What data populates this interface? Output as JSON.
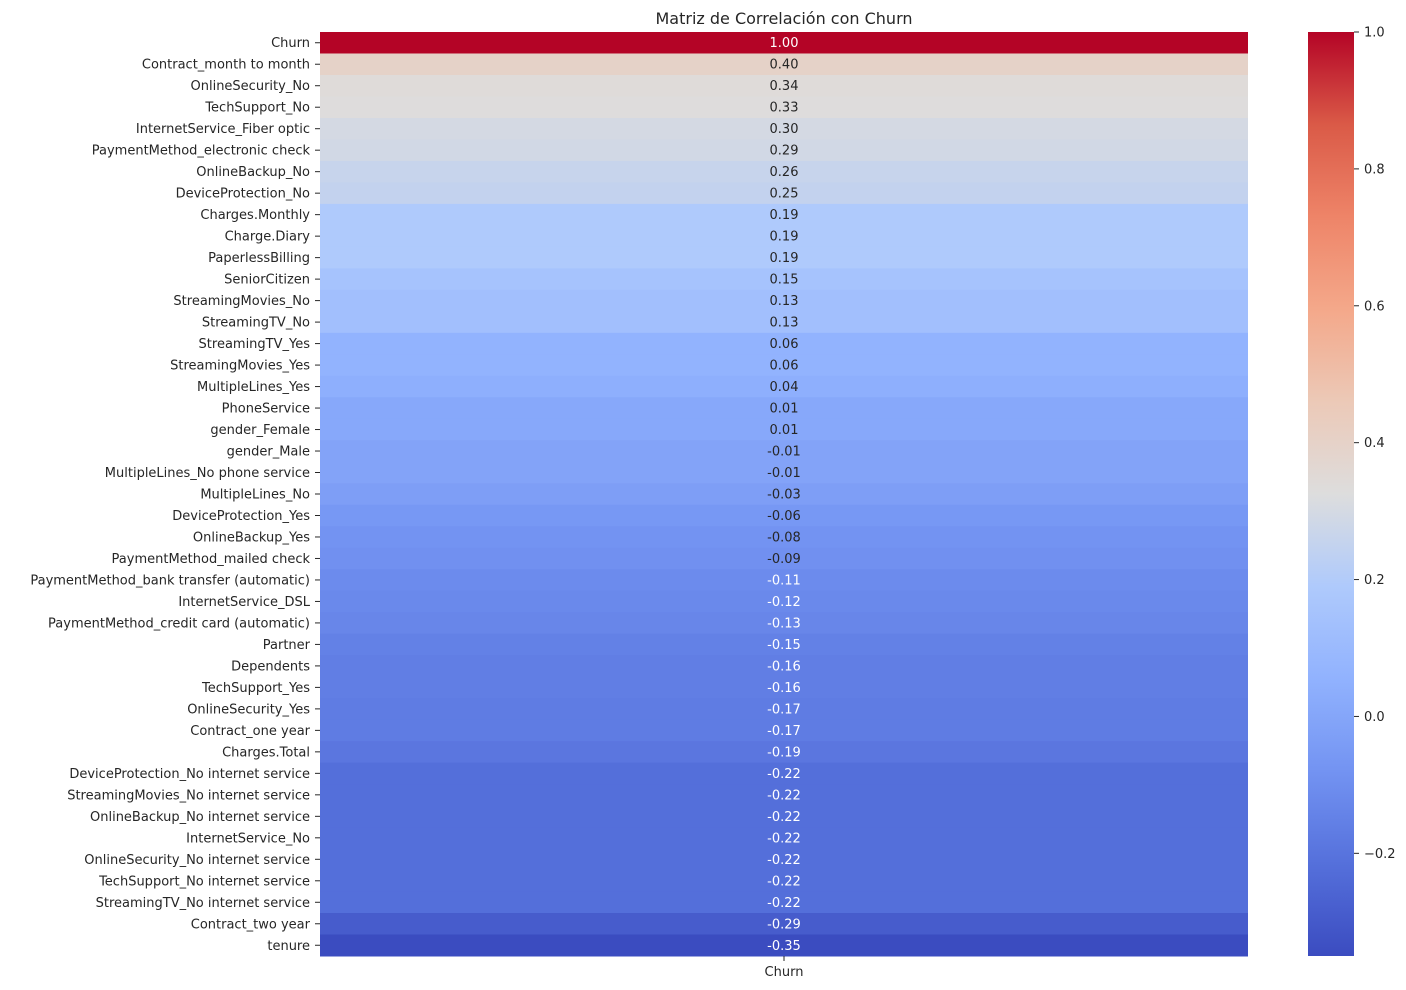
{
  "chart_data": {
    "type": "heatmap",
    "title": "Matriz de Correlación con Churn",
    "columns": [
      "Churn"
    ],
    "rows": [
      {
        "label": "Churn",
        "value": 1.0,
        "text": "1.00"
      },
      {
        "label": "Contract_month to month",
        "value": 0.4,
        "text": "0.40"
      },
      {
        "label": "OnlineSecurity_No",
        "value": 0.34,
        "text": "0.34"
      },
      {
        "label": "TechSupport_No",
        "value": 0.33,
        "text": "0.33"
      },
      {
        "label": "InternetService_Fiber optic",
        "value": 0.3,
        "text": "0.30"
      },
      {
        "label": "PaymentMethod_electronic check",
        "value": 0.29,
        "text": "0.29"
      },
      {
        "label": "OnlineBackup_No",
        "value": 0.26,
        "text": "0.26"
      },
      {
        "label": "DeviceProtection_No",
        "value": 0.25,
        "text": "0.25"
      },
      {
        "label": "Charges.Monthly",
        "value": 0.19,
        "text": "0.19"
      },
      {
        "label": "Charge.Diary",
        "value": 0.19,
        "text": "0.19"
      },
      {
        "label": "PaperlessBilling",
        "value": 0.19,
        "text": "0.19"
      },
      {
        "label": "SeniorCitizen",
        "value": 0.15,
        "text": "0.15"
      },
      {
        "label": "StreamingMovies_No",
        "value": 0.13,
        "text": "0.13"
      },
      {
        "label": "StreamingTV_No",
        "value": 0.13,
        "text": "0.13"
      },
      {
        "label": "StreamingTV_Yes",
        "value": 0.06,
        "text": "0.06"
      },
      {
        "label": "StreamingMovies_Yes",
        "value": 0.06,
        "text": "0.06"
      },
      {
        "label": "MultipleLines_Yes",
        "value": 0.04,
        "text": "0.04"
      },
      {
        "label": "PhoneService",
        "value": 0.01,
        "text": "0.01"
      },
      {
        "label": "gender_Female",
        "value": 0.01,
        "text": "0.01"
      },
      {
        "label": "gender_Male",
        "value": -0.01,
        "text": "-0.01"
      },
      {
        "label": "MultipleLines_No phone service",
        "value": -0.01,
        "text": "-0.01"
      },
      {
        "label": "MultipleLines_No",
        "value": -0.03,
        "text": "-0.03"
      },
      {
        "label": "DeviceProtection_Yes",
        "value": -0.06,
        "text": "-0.06"
      },
      {
        "label": "OnlineBackup_Yes",
        "value": -0.08,
        "text": "-0.08"
      },
      {
        "label": "PaymentMethod_mailed check",
        "value": -0.09,
        "text": "-0.09"
      },
      {
        "label": "PaymentMethod_bank transfer (automatic)",
        "value": -0.11,
        "text": "-0.11"
      },
      {
        "label": "InternetService_DSL",
        "value": -0.12,
        "text": "-0.12"
      },
      {
        "label": "PaymentMethod_credit card (automatic)",
        "value": -0.13,
        "text": "-0.13"
      },
      {
        "label": "Partner",
        "value": -0.15,
        "text": "-0.15"
      },
      {
        "label": "Dependents",
        "value": -0.16,
        "text": "-0.16"
      },
      {
        "label": "TechSupport_Yes",
        "value": -0.16,
        "text": "-0.16"
      },
      {
        "label": "OnlineSecurity_Yes",
        "value": -0.17,
        "text": "-0.17"
      },
      {
        "label": "Contract_one year",
        "value": -0.17,
        "text": "-0.17"
      },
      {
        "label": "Charges.Total",
        "value": -0.19,
        "text": "-0.19"
      },
      {
        "label": "DeviceProtection_No internet service",
        "value": -0.22,
        "text": "-0.22"
      },
      {
        "label": "StreamingMovies_No internet service",
        "value": -0.22,
        "text": "-0.22"
      },
      {
        "label": "OnlineBackup_No internet service",
        "value": -0.22,
        "text": "-0.22"
      },
      {
        "label": "InternetService_No",
        "value": -0.22,
        "text": "-0.22"
      },
      {
        "label": "OnlineSecurity_No internet service",
        "value": -0.22,
        "text": "-0.22"
      },
      {
        "label": "TechSupport_No internet service",
        "value": -0.22,
        "text": "-0.22"
      },
      {
        "label": "StreamingTV_No internet service",
        "value": -0.22,
        "text": "-0.22"
      },
      {
        "label": "Contract_two year",
        "value": -0.29,
        "text": "-0.29"
      },
      {
        "label": "tenure",
        "value": -0.35,
        "text": "-0.35"
      }
    ],
    "colorbar": {
      "colormap": "coolwarm",
      "vmin": -0.35,
      "vmax": 1.0,
      "ticks": [
        {
          "value": 1.0,
          "label": "1.0"
        },
        {
          "value": 0.8,
          "label": "0.8"
        },
        {
          "value": 0.6,
          "label": "0.6"
        },
        {
          "value": 0.4,
          "label": "0.4"
        },
        {
          "value": 0.2,
          "label": "0.2"
        },
        {
          "value": 0.0,
          "label": "0.0"
        },
        {
          "value": -0.2,
          "label": "−0.2"
        }
      ]
    }
  }
}
